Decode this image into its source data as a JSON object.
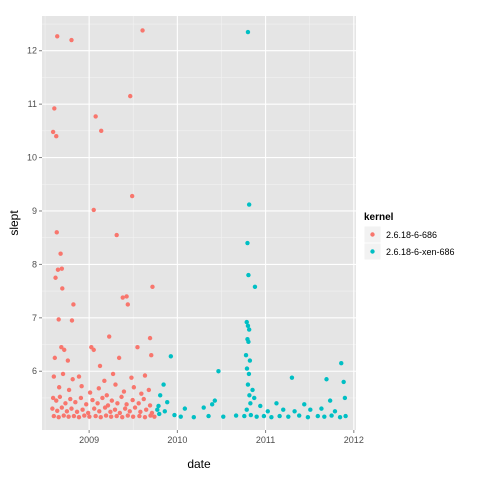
{
  "chart_data": {
    "type": "scatter",
    "xlabel": "date",
    "ylabel": "slept",
    "xlim": [
      "2008-06-20",
      "2012-01-10"
    ],
    "ylim": [
      4.9,
      12.65
    ],
    "x_ticks": [
      {
        "value": "2009-01-01",
        "label": "2009"
      },
      {
        "value": "2010-01-01",
        "label": "2010"
      },
      {
        "value": "2011-01-01",
        "label": "2011"
      },
      {
        "value": "2012-01-01",
        "label": "2012"
      }
    ],
    "y_ticks": [
      6,
      7,
      8,
      9,
      10,
      11,
      12
    ],
    "grid": true,
    "panel_background": "#e5e5e5",
    "legend": {
      "title": "kernel",
      "position": "right",
      "entries": [
        {
          "label": "2.6.18-6-686",
          "color": "#f8766d"
        },
        {
          "label": "2.6.18-6-xen-686",
          "color": "#00bfc4"
        }
      ]
    },
    "series": [
      {
        "name": "2.6.18-6-686",
        "color": "#f8766d",
        "points": [
          [
            "2008-08-05",
            10.48
          ],
          [
            "2008-08-10",
            10.92
          ],
          [
            "2008-08-18",
            10.4
          ],
          [
            "2008-08-22",
            12.27
          ],
          [
            "2008-10-20",
            12.2
          ],
          [
            "2009-08-10",
            12.38
          ],
          [
            "2009-06-20",
            11.15
          ],
          [
            "2009-01-28",
            10.77
          ],
          [
            "2009-02-20",
            10.5
          ],
          [
            "2009-01-20",
            9.02
          ],
          [
            "2009-06-28",
            9.28
          ],
          [
            "2009-04-25",
            8.55
          ],
          [
            "2008-08-20",
            8.6
          ],
          [
            "2008-09-05",
            8.2
          ],
          [
            "2008-09-10",
            7.92
          ],
          [
            "2008-08-25",
            7.9
          ],
          [
            "2008-08-15",
            7.75
          ],
          [
            "2008-09-12",
            7.55
          ],
          [
            "2009-06-05",
            7.4
          ],
          [
            "2009-09-20",
            7.58
          ],
          [
            "2009-05-20",
            7.38
          ],
          [
            "2008-10-28",
            7.25
          ],
          [
            "2009-06-10",
            7.25
          ],
          [
            "2008-08-28",
            6.97
          ],
          [
            "2008-10-22",
            6.95
          ],
          [
            "2009-03-25",
            6.65
          ],
          [
            "2009-09-10",
            6.62
          ],
          [
            "2008-09-08",
            6.45
          ],
          [
            "2008-09-20",
            6.4
          ],
          [
            "2009-01-10",
            6.45
          ],
          [
            "2009-01-20",
            6.4
          ],
          [
            "2009-07-20",
            6.45
          ],
          [
            "2008-08-12",
            6.25
          ],
          [
            "2008-10-05",
            6.2
          ],
          [
            "2009-02-15",
            6.1
          ],
          [
            "2009-05-05",
            6.25
          ],
          [
            "2009-09-15",
            6.3
          ],
          [
            "2008-08-08",
            5.9
          ],
          [
            "2008-09-15",
            5.95
          ],
          [
            "2008-10-25",
            5.85
          ],
          [
            "2008-11-20",
            5.9
          ],
          [
            "2009-03-05",
            5.82
          ],
          [
            "2009-04-10",
            5.95
          ],
          [
            "2009-06-25",
            5.88
          ],
          [
            "2009-08-20",
            5.92
          ],
          [
            "2008-08-30",
            5.7
          ],
          [
            "2008-10-10",
            5.65
          ],
          [
            "2008-12-01",
            5.72
          ],
          [
            "2009-01-05",
            5.6
          ],
          [
            "2009-02-10",
            5.68
          ],
          [
            "2009-03-15",
            5.55
          ],
          [
            "2009-04-20",
            5.75
          ],
          [
            "2009-05-25",
            5.62
          ],
          [
            "2009-07-05",
            5.7
          ],
          [
            "2009-08-05",
            5.58
          ],
          [
            "2009-09-05",
            5.65
          ],
          [
            "2008-08-05",
            5.5
          ],
          [
            "2008-08-18",
            5.45
          ],
          [
            "2008-09-02",
            5.52
          ],
          [
            "2008-09-25",
            5.4
          ],
          [
            "2008-10-15",
            5.48
          ],
          [
            "2008-11-05",
            5.42
          ],
          [
            "2008-11-28",
            5.5
          ],
          [
            "2008-12-20",
            5.38
          ],
          [
            "2009-01-15",
            5.46
          ],
          [
            "2009-02-05",
            5.4
          ],
          [
            "2009-02-25",
            5.5
          ],
          [
            "2009-03-20",
            5.36
          ],
          [
            "2009-04-05",
            5.45
          ],
          [
            "2009-04-28",
            5.4
          ],
          [
            "2009-05-15",
            5.52
          ],
          [
            "2009-06-05",
            5.38
          ],
          [
            "2009-06-30",
            5.46
          ],
          [
            "2009-07-25",
            5.4
          ],
          [
            "2009-08-15",
            5.48
          ],
          [
            "2009-09-10",
            5.36
          ],
          [
            "2008-08-02",
            5.3
          ],
          [
            "2008-08-22",
            5.26
          ],
          [
            "2008-09-10",
            5.32
          ],
          [
            "2008-10-01",
            5.25
          ],
          [
            "2008-10-20",
            5.3
          ],
          [
            "2008-11-12",
            5.24
          ],
          [
            "2008-12-05",
            5.28
          ],
          [
            "2008-12-28",
            5.22
          ],
          [
            "2009-01-22",
            5.3
          ],
          [
            "2009-02-12",
            5.25
          ],
          [
            "2009-03-08",
            5.32
          ],
          [
            "2009-03-30",
            5.24
          ],
          [
            "2009-04-18",
            5.28
          ],
          [
            "2009-05-08",
            5.22
          ],
          [
            "2009-05-30",
            5.3
          ],
          [
            "2009-06-18",
            5.25
          ],
          [
            "2009-07-10",
            5.32
          ],
          [
            "2009-08-01",
            5.24
          ],
          [
            "2009-08-25",
            5.28
          ],
          [
            "2009-09-18",
            5.22
          ],
          [
            "2008-08-08",
            5.16
          ],
          [
            "2008-08-28",
            5.14
          ],
          [
            "2008-09-18",
            5.17
          ],
          [
            "2008-10-08",
            5.15
          ],
          [
            "2008-10-30",
            5.16
          ],
          [
            "2008-11-20",
            5.14
          ],
          [
            "2008-12-12",
            5.17
          ],
          [
            "2009-01-02",
            5.15
          ],
          [
            "2009-01-28",
            5.16
          ],
          [
            "2009-02-18",
            5.14
          ],
          [
            "2009-03-12",
            5.17
          ],
          [
            "2009-04-02",
            5.15
          ],
          [
            "2009-04-25",
            5.16
          ],
          [
            "2009-05-18",
            5.14
          ],
          [
            "2009-06-10",
            5.17
          ],
          [
            "2009-07-02",
            5.15
          ],
          [
            "2009-07-28",
            5.16
          ],
          [
            "2009-08-20",
            5.14
          ],
          [
            "2009-09-12",
            5.17
          ],
          [
            "2009-09-28",
            5.15
          ]
        ]
      },
      {
        "name": "2.6.18-6-xen-686",
        "color": "#00bfc4",
        "points": [
          [
            "2010-10-20",
            12.35
          ],
          [
            "2010-10-25",
            9.12
          ],
          [
            "2010-10-18",
            8.4
          ],
          [
            "2010-10-22",
            7.8
          ],
          [
            "2010-11-18",
            7.58
          ],
          [
            "2010-10-15",
            6.92
          ],
          [
            "2010-10-20",
            6.85
          ],
          [
            "2010-10-25",
            6.78
          ],
          [
            "2010-10-18",
            6.6
          ],
          [
            "2010-10-22",
            6.55
          ],
          [
            "2009-12-05",
            6.28
          ],
          [
            "2011-11-10",
            6.15
          ],
          [
            "2010-10-12",
            6.3
          ],
          [
            "2010-10-28",
            6.2
          ],
          [
            "2010-10-16",
            6.05
          ],
          [
            "2010-06-20",
            6.0
          ],
          [
            "2010-10-24",
            5.95
          ],
          [
            "2011-04-20",
            5.88
          ],
          [
            "2011-09-10",
            5.85
          ],
          [
            "2011-11-20",
            5.8
          ],
          [
            "2009-11-05",
            5.75
          ],
          [
            "2010-10-20",
            5.75
          ],
          [
            "2010-11-08",
            5.65
          ],
          [
            "2009-10-22",
            5.55
          ],
          [
            "2010-10-26",
            5.55
          ],
          [
            "2010-11-15",
            5.5
          ],
          [
            "2010-06-05",
            5.45
          ],
          [
            "2011-11-25",
            5.5
          ],
          [
            "2009-11-20",
            5.42
          ],
          [
            "2010-10-30",
            5.4
          ],
          [
            "2011-02-15",
            5.4
          ],
          [
            "2011-09-25",
            5.45
          ],
          [
            "2010-05-25",
            5.38
          ],
          [
            "2010-12-10",
            5.35
          ],
          [
            "2011-06-10",
            5.38
          ],
          [
            "2009-10-15",
            5.35
          ],
          [
            "2010-04-20",
            5.32
          ],
          [
            "2010-02-01",
            5.3
          ],
          [
            "2011-08-20",
            5.3
          ],
          [
            "2009-10-10",
            5.28
          ],
          [
            "2009-11-10",
            5.25
          ],
          [
            "2010-10-15",
            5.28
          ],
          [
            "2011-01-10",
            5.25
          ],
          [
            "2011-03-15",
            5.28
          ],
          [
            "2011-05-01",
            5.25
          ],
          [
            "2011-07-05",
            5.28
          ],
          [
            "2011-10-15",
            5.25
          ],
          [
            "2009-10-18",
            5.2
          ],
          [
            "2009-12-20",
            5.18
          ],
          [
            "2010-01-15",
            5.15
          ],
          [
            "2010-03-10",
            5.14
          ],
          [
            "2010-05-10",
            5.16
          ],
          [
            "2010-07-10",
            5.15
          ],
          [
            "2010-09-01",
            5.17
          ],
          [
            "2010-10-05",
            5.16
          ],
          [
            "2010-11-01",
            5.18
          ],
          [
            "2010-11-25",
            5.15
          ],
          [
            "2010-12-25",
            5.16
          ],
          [
            "2011-01-25",
            5.14
          ],
          [
            "2011-02-28",
            5.16
          ],
          [
            "2011-04-05",
            5.15
          ],
          [
            "2011-05-20",
            5.17
          ],
          [
            "2011-06-25",
            5.14
          ],
          [
            "2011-08-05",
            5.16
          ],
          [
            "2011-09-01",
            5.15
          ],
          [
            "2011-10-01",
            5.17
          ],
          [
            "2011-11-05",
            5.14
          ],
          [
            "2011-11-28",
            5.16
          ]
        ]
      }
    ]
  }
}
